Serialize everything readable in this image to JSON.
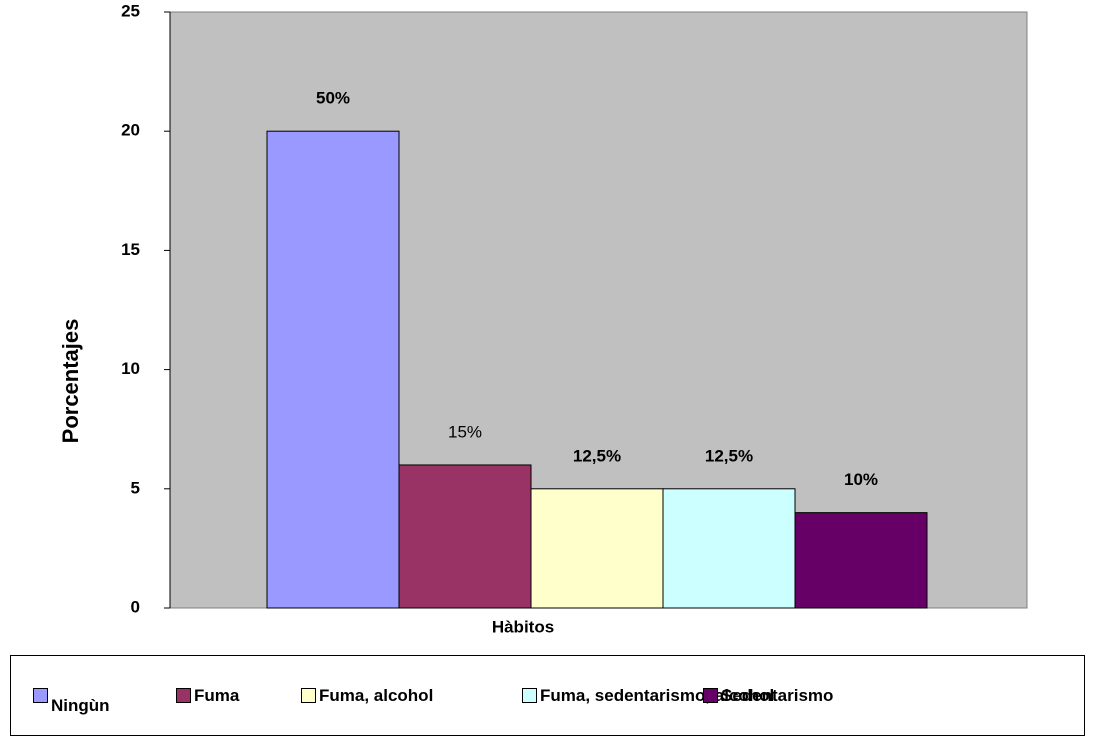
{
  "chart_data": {
    "type": "bar",
    "y_label": "Porcentajes",
    "x_label": "Hàbitos",
    "series": [
      {
        "name": "Ningùn",
        "color": "#9999FF",
        "values": [
          20
        ]
      },
      {
        "name": "Fuma",
        "color": "#993366",
        "values": [
          6
        ]
      },
      {
        "name": "Fuma, alcohol",
        "color": "#FFFFCC",
        "values": [
          5
        ]
      },
      {
        "name": "Fuma, sedentarismo, alcohol",
        "color": "#CCFFFF",
        "values": [
          5
        ]
      },
      {
        "name": "Sedentarismo",
        "color": "#660066",
        "values": [
          4
        ]
      }
    ],
    "annotations": [
      "50%",
      "15%",
      "12,5%",
      "12,5%",
      "10%"
    ],
    "ylim": [
      0,
      25
    ],
    "yticks": [
      0,
      5,
      10,
      15,
      20,
      25
    ],
    "plot_background": "#C0C0C0"
  }
}
